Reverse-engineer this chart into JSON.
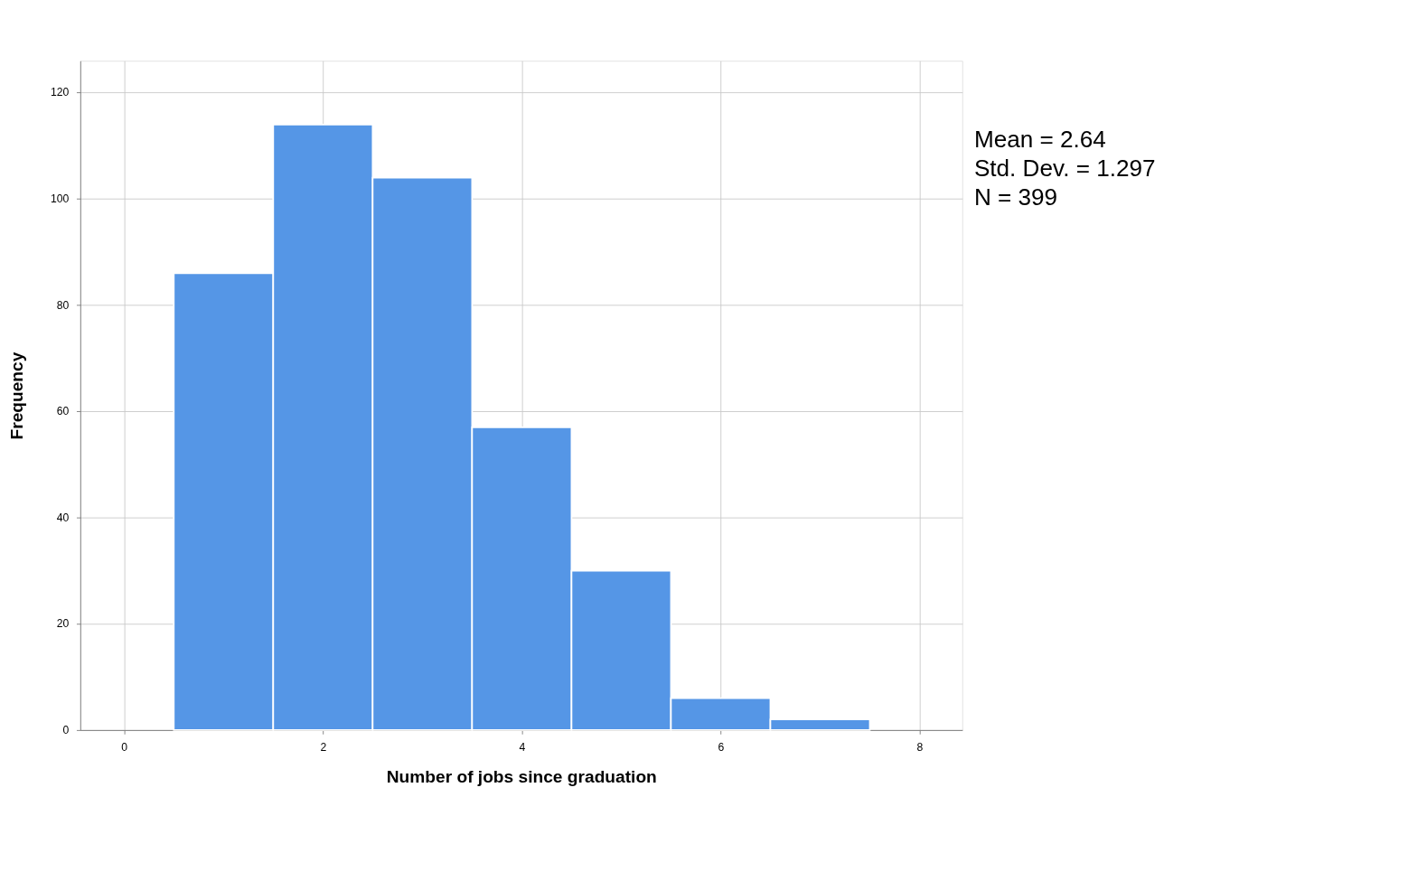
{
  "chart_data": {
    "type": "histogram",
    "xlabel": "Number of jobs since graduation",
    "ylabel": "Frequency",
    "bins": [
      0.5,
      1.5,
      2.5,
      3.5,
      4.5,
      5.5,
      6.5,
      7.5
    ],
    "values": [
      86,
      114,
      104,
      57,
      30,
      6,
      2
    ],
    "color": "#5596e6",
    "xlim": [
      -0.44,
      8.43
    ],
    "xticks": [
      0,
      2,
      4,
      6,
      8
    ],
    "ylim": [
      0,
      126
    ],
    "yticks": [
      0,
      20,
      40,
      60,
      80,
      100,
      120
    ],
    "grid": true,
    "annotations": [
      "Mean = 2.64",
      "Std. Dev. = 1.297",
      "N = 399"
    ]
  }
}
